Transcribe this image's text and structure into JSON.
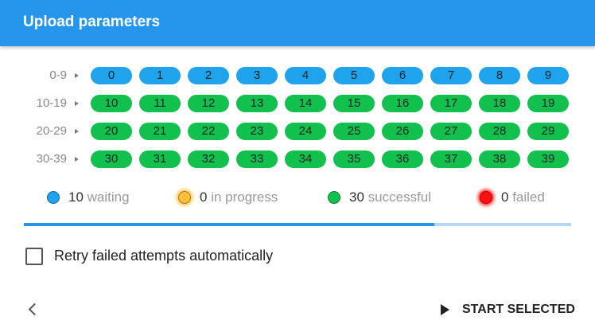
{
  "header": {
    "title": "Upload parameters"
  },
  "status_colors": {
    "waiting": "#1ea3ec",
    "in_progress": "#ffbe3c",
    "successful": "#12c04e",
    "failed": "#ff1010"
  },
  "rows": [
    {
      "label": "0-9",
      "cells": [
        {
          "text": 0,
          "status": "waiting"
        },
        {
          "text": 1,
          "status": "waiting"
        },
        {
          "text": 2,
          "status": "waiting"
        },
        {
          "text": 3,
          "status": "waiting"
        },
        {
          "text": 4,
          "status": "waiting"
        },
        {
          "text": 5,
          "status": "waiting"
        },
        {
          "text": 6,
          "status": "waiting"
        },
        {
          "text": 7,
          "status": "waiting"
        },
        {
          "text": 8,
          "status": "waiting"
        },
        {
          "text": 9,
          "status": "waiting"
        }
      ]
    },
    {
      "label": "10-19",
      "cells": [
        {
          "text": 10,
          "status": "successful"
        },
        {
          "text": 11,
          "status": "successful"
        },
        {
          "text": 12,
          "status": "successful"
        },
        {
          "text": 13,
          "status": "successful"
        },
        {
          "text": 14,
          "status": "successful"
        },
        {
          "text": 15,
          "status": "successful"
        },
        {
          "text": 16,
          "status": "successful"
        },
        {
          "text": 17,
          "status": "successful"
        },
        {
          "text": 18,
          "status": "successful"
        },
        {
          "text": 19,
          "status": "successful"
        }
      ]
    },
    {
      "label": "20-29",
      "cells": [
        {
          "text": 20,
          "status": "successful"
        },
        {
          "text": 21,
          "status": "successful"
        },
        {
          "text": 22,
          "status": "successful"
        },
        {
          "text": 23,
          "status": "successful"
        },
        {
          "text": 24,
          "status": "successful"
        },
        {
          "text": 25,
          "status": "successful"
        },
        {
          "text": 26,
          "status": "successful"
        },
        {
          "text": 27,
          "status": "successful"
        },
        {
          "text": 28,
          "status": "successful"
        },
        {
          "text": 29,
          "status": "successful"
        }
      ]
    },
    {
      "label": "30-39",
      "cells": [
        {
          "text": 30,
          "status": "successful"
        },
        {
          "text": 31,
          "status": "successful"
        },
        {
          "text": 32,
          "status": "successful"
        },
        {
          "text": 33,
          "status": "successful"
        },
        {
          "text": 34,
          "status": "successful"
        },
        {
          "text": 35,
          "status": "successful"
        },
        {
          "text": 36,
          "status": "successful"
        },
        {
          "text": 37,
          "status": "successful"
        },
        {
          "text": 38,
          "status": "successful"
        },
        {
          "text": 39,
          "status": "successful"
        }
      ]
    }
  ],
  "legend": [
    {
      "count": 10,
      "label": "waiting",
      "status": "waiting"
    },
    {
      "count": 0,
      "label": "in progress",
      "status": "in_progress"
    },
    {
      "count": 30,
      "label": "successful",
      "status": "successful"
    },
    {
      "count": 0,
      "label": "failed",
      "status": "failed"
    }
  ],
  "checkbox": {
    "label": "Retry failed attempts automatically"
  },
  "button": {
    "label": "START SELECTED"
  }
}
